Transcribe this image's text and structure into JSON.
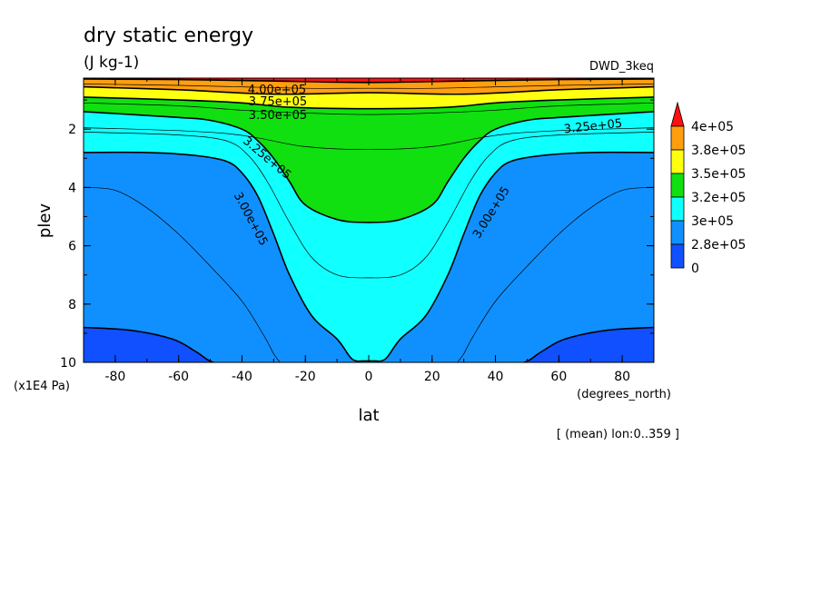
{
  "chart_data": {
    "type": "contour",
    "title": "dry static energy",
    "units": "(J kg-1)",
    "dataset": "DWD_3keq",
    "xlabel": "lat",
    "ylabel": "plev",
    "x_units": "(degrees_north)",
    "y_units": "(x1E4 Pa)",
    "footnote": "[ (mean) lon:0..359 ]",
    "xlim": [
      -90,
      90
    ],
    "ylim": [
      10,
      0.25
    ],
    "x_ticks": [
      "-80",
      "-60",
      "-40",
      "-20",
      "0",
      "20",
      "40",
      "60",
      "80"
    ],
    "y_ticks": [
      "2",
      "4",
      "6",
      "8",
      "10"
    ],
    "levels": [
      275000,
      300000,
      325000,
      350000,
      375000,
      400000
    ],
    "colorbar": {
      "labels": [
        "4e+05",
        "3.8e+05",
        "3.5e+05",
        "3.2e+05",
        "3e+05",
        "2.8e+05",
        "0"
      ],
      "colors": [
        "#ff1010",
        "#ff9f10",
        "#ffff10",
        "#10e010",
        "#10ffff",
        "#1090ff",
        "#1050ff"
      ]
    },
    "contour_labels": [
      "4.00e+05",
      "3.75e+05",
      "3.50e+05",
      "3.25e+05",
      "3.25e+05",
      "3.00e+05",
      "3.00e+05"
    ],
    "contours": [
      {
        "level": 400000,
        "label": "4.00e+05",
        "x": [
          -90,
          -60,
          -30,
          0,
          30,
          60,
          90
        ],
        "y": [
          0.28,
          0.3,
          0.35,
          0.4,
          0.35,
          0.3,
          0.28
        ]
      },
      {
        "level": 375000,
        "label": "3.75e+05",
        "x": [
          -90,
          -60,
          -30,
          0,
          30,
          60,
          90
        ],
        "y": [
          0.55,
          0.65,
          0.8,
          0.75,
          0.8,
          0.65,
          0.55
        ]
      },
      {
        "level": 350000,
        "label": "3.50e+05",
        "x": [
          -90,
          -60,
          -40,
          -25,
          0,
          25,
          40,
          60,
          90
        ],
        "y": [
          0.9,
          1.0,
          1.1,
          1.25,
          1.3,
          1.25,
          1.1,
          1.0,
          0.9
        ]
      },
      {
        "level": 325000,
        "label": "3.25e+05",
        "x": [
          -90,
          -60,
          -50,
          -40,
          -35,
          -30,
          -25,
          -20,
          -10,
          0,
          10,
          20,
          25,
          30,
          35,
          40,
          50,
          60,
          90
        ],
        "y": [
          1.4,
          1.6,
          1.7,
          2.0,
          2.4,
          3.0,
          3.8,
          4.6,
          5.1,
          5.2,
          5.1,
          4.6,
          3.8,
          3.0,
          2.4,
          2.0,
          1.7,
          1.6,
          1.4
        ]
      },
      {
        "level": 300000,
        "label": "3.00e+05",
        "x": [
          -90,
          -70,
          -55,
          -45,
          -40,
          -35,
          -30,
          -25,
          -18,
          -10,
          -6,
          -4,
          -2,
          2,
          4,
          6,
          10,
          18,
          25,
          30,
          35,
          40,
          45,
          55,
          70,
          90
        ],
        "y": [
          2.8,
          2.8,
          2.9,
          3.1,
          3.5,
          4.3,
          5.6,
          7.0,
          8.4,
          9.2,
          9.8,
          9.95,
          9.95,
          9.95,
          9.95,
          9.8,
          9.2,
          8.4,
          7.0,
          5.6,
          4.3,
          3.5,
          3.1,
          2.9,
          2.8,
          2.8
        ]
      },
      {
        "level": 275000,
        "x": [
          -90,
          -75,
          -62,
          -55,
          -51,
          -49
        ],
        "y": [
          8.8,
          8.9,
          9.2,
          9.6,
          9.9,
          10.0
        ]
      },
      {
        "level": 275000,
        "x": [
          49,
          51,
          55,
          62,
          75,
          90
        ],
        "y": [
          10.0,
          9.9,
          9.6,
          9.2,
          8.9,
          8.8
        ]
      }
    ],
    "thin_contours": [
      {
        "x": [
          -90,
          -60,
          -40,
          -20,
          0,
          20,
          40,
          60,
          90
        ],
        "y": [
          0.45,
          0.5,
          0.55,
          0.6,
          0.6,
          0.6,
          0.55,
          0.5,
          0.45
        ]
      },
      {
        "x": [
          -90,
          -60,
          -40,
          -20,
          0,
          20,
          40,
          60,
          90
        ],
        "y": [
          1.1,
          1.2,
          1.35,
          1.45,
          1.5,
          1.45,
          1.35,
          1.2,
          1.1
        ]
      },
      {
        "x": [
          -90,
          -60,
          -45,
          -35,
          -20,
          0,
          20,
          35,
          45,
          60,
          90
        ],
        "y": [
          1.95,
          2.05,
          2.15,
          2.3,
          2.6,
          2.7,
          2.6,
          2.3,
          2.15,
          2.05,
          1.95
        ]
      },
      {
        "x": [
          -90,
          -60,
          -45,
          -38,
          -32,
          -25,
          -18,
          -10,
          0,
          10,
          18,
          25,
          32,
          38,
          45,
          60,
          90
        ],
        "y": [
          2.1,
          2.2,
          2.4,
          2.9,
          3.8,
          5.2,
          6.4,
          7.0,
          7.1,
          7.0,
          6.4,
          5.2,
          3.8,
          2.9,
          2.4,
          2.2,
          2.1
        ]
      },
      {
        "x": [
          -90,
          -80,
          -70,
          -60,
          -50,
          -40,
          -33,
          -30,
          -28
        ],
        "y": [
          4.0,
          4.1,
          4.7,
          5.6,
          6.7,
          7.9,
          9.1,
          9.7,
          10.0
        ]
      },
      {
        "x": [
          28,
          30,
          33,
          40,
          50,
          60,
          70,
          80,
          90
        ],
        "y": [
          10.0,
          9.7,
          9.1,
          7.9,
          6.7,
          5.6,
          4.7,
          4.1,
          4.0
        ]
      }
    ]
  }
}
